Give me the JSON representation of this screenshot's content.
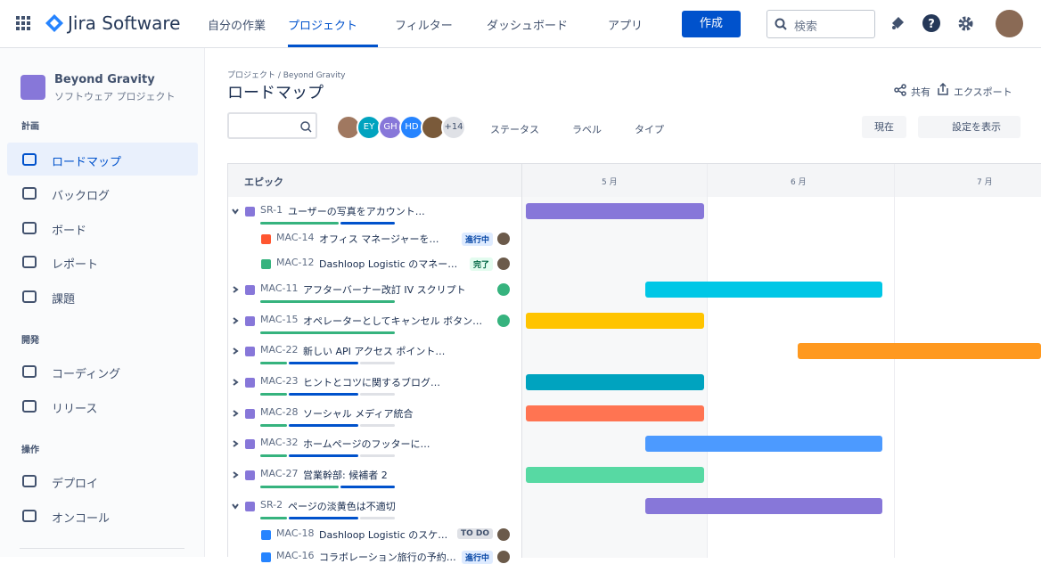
{
  "header": {
    "product": "Jira Software",
    "nav": [
      "自分の作業",
      "プロジェクト",
      "フィルター",
      "ダッシュボード",
      "アプリ"
    ],
    "create": "作成",
    "search": "検索"
  },
  "sidebar": {
    "project": "Beyond Gravity",
    "project_type": "ソフトウェア プロジェクト",
    "sections": [
      {
        "title": "計画",
        "items": [
          "ロードマップ",
          "バックログ",
          "ボード",
          "レポート",
          "課題"
        ]
      },
      {
        "title": "開発",
        "items": [
          "コーディング",
          "リリース"
        ]
      },
      {
        "title": "操作",
        "items": [
          "デプロイ",
          "オンコール"
        ]
      }
    ]
  },
  "main": {
    "breadcrumb": "プロジェクト / Beyond Gravity",
    "title": "ロードマップ",
    "share": "共有",
    "export": "エクスポート",
    "avatars": [
      "EY",
      "GH",
      "HD"
    ],
    "more_avatars": "+14",
    "filters": [
      "ステータス",
      "ラベル",
      "タイプ"
    ],
    "today": "現在",
    "view_settings": "設定を表示",
    "epic_header": "エピック",
    "months": [
      "5 月",
      "6 月",
      "7 月"
    ],
    "rows": [
      {
        "key": "SR-1",
        "summary": "ユーザーの写真をアカウント…"
      },
      {
        "key": "MAC-14",
        "summary": "オフィス マネージャーを…",
        "status": "進行中"
      },
      {
        "key": "MAC-12",
        "summary": "Dashloop Logistic のマネー…",
        "status": "完了"
      },
      {
        "key": "MAC-11",
        "summary": "アフターバーナー改訂 IV スクリプト"
      },
      {
        "key": "MAC-15",
        "summary": "オペレーターとしてキャンセル ボタン…"
      },
      {
        "key": "MAC-22",
        "summary": "新しい API アクセス ポイント…"
      },
      {
        "key": "MAC-23",
        "summary": "ヒントとコツに関するブログ…"
      },
      {
        "key": "MAC-28",
        "summary": "ソーシャル メディア統合"
      },
      {
        "key": "MAC-32",
        "summary": "ホームページのフッターに…"
      },
      {
        "key": "MAC-27",
        "summary": "営業幹部: 候補者 2"
      },
      {
        "key": "SR-2",
        "summary": "ページの淡黄色は不適切"
      },
      {
        "key": "MAC-18",
        "summary": "Dashloop Logistic のスケ…",
        "status": "TO DO"
      },
      {
        "key": "MAC-16",
        "summary": "コラボレーション旅行の予約…",
        "status": "進行中"
      }
    ]
  }
}
